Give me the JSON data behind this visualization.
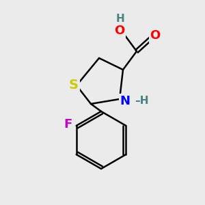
{
  "bg_color": "#ebebeb",
  "atom_colors": {
    "C": "#000000",
    "H": "#4a8080",
    "O": "#ff0000",
    "N": "#0000ff",
    "S": "#cccc00",
    "F": "#cc00cc"
  },
  "bond_color": "#000000",
  "bond_width": 1.8,
  "font_size": 13,
  "font_size_small": 11
}
